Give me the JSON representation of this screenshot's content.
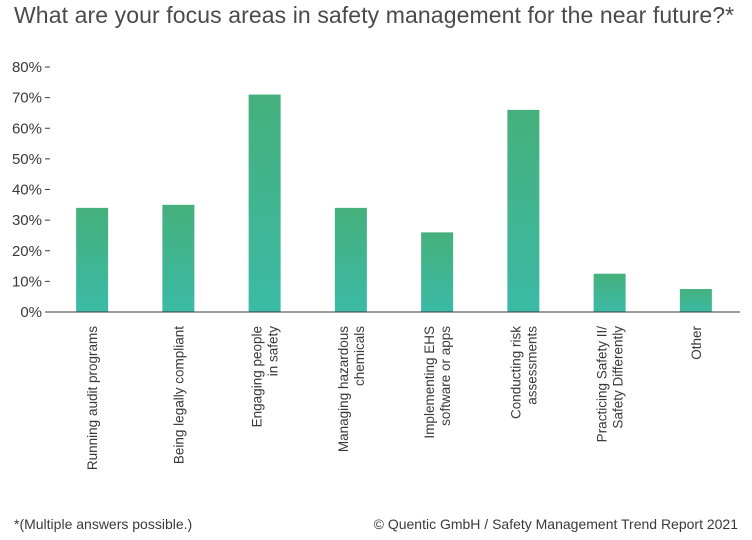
{
  "title": "What are your focus areas in safety management for the near future?*",
  "footnote": "*(Multiple answers possible.)",
  "credit": "© Quentic GmbH / Safety Management Trend Report 2021",
  "colors": {
    "bar_top": "#45b07c",
    "bar_bottom": "#3bbaa6",
    "axis": "#3a3a3a",
    "text": "#3a3a3a"
  },
  "chart_data": {
    "type": "bar",
    "title": "What are your focus areas in safety management for the near future?*",
    "xlabel": "",
    "ylabel": "",
    "ylim": [
      0,
      80
    ],
    "yticks": [
      0,
      10,
      20,
      30,
      40,
      50,
      60,
      70,
      80
    ],
    "ytick_labels": [
      "0%",
      "10%",
      "20%",
      "30%",
      "40%",
      "50%",
      "60%",
      "70%",
      "80%"
    ],
    "grid": false,
    "legend": "none",
    "categories": [
      [
        "Running audit programs"
      ],
      [
        "Being legally compliant"
      ],
      [
        "Engaging people",
        "in safety"
      ],
      [
        "Managing hazardous",
        "chemicals"
      ],
      [
        "Implementing EHS",
        "software or apps"
      ],
      [
        "Conducting risk",
        "assessments"
      ],
      [
        "Practicing Safety II/",
        "Safety Differently"
      ],
      [
        "Other"
      ]
    ],
    "values": [
      34,
      35,
      71,
      34,
      26,
      66,
      12.5,
      7.5
    ]
  }
}
